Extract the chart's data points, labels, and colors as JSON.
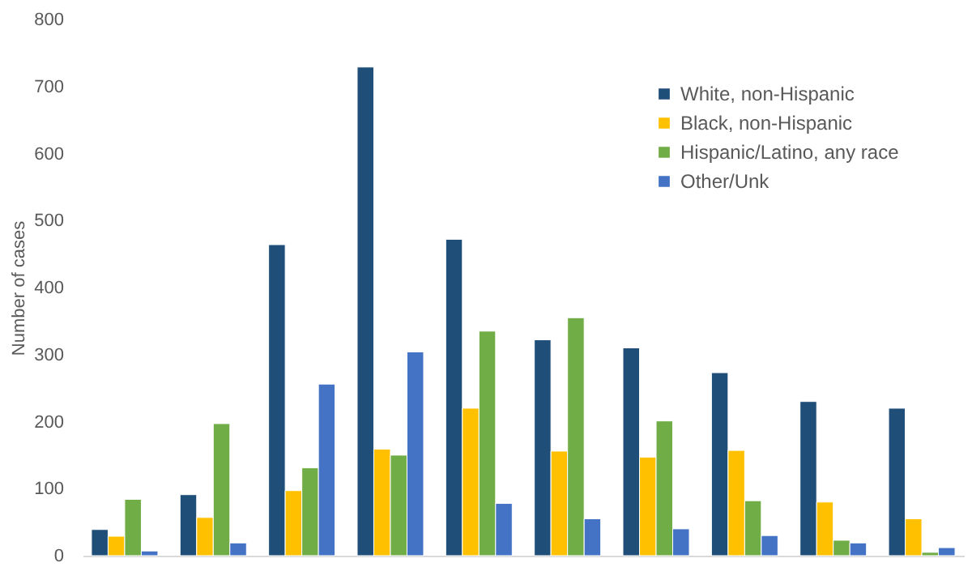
{
  "chart_data": {
    "type": "bar",
    "ylabel": "Number of cases",
    "categories": [
      null,
      null,
      null,
      null,
      null,
      null,
      null,
      null,
      null,
      null
    ],
    "series": [
      {
        "name": "White, non-Hispanic",
        "color": "#1f4e79",
        "values": [
          39,
          91,
          464,
          729,
          472,
          322,
          310,
          273,
          230,
          220
        ]
      },
      {
        "name": "Black, non-Hispanic",
        "color": "#ffc000",
        "values": [
          29,
          57,
          97,
          159,
          220,
          156,
          147,
          157,
          80,
          55
        ]
      },
      {
        "name": "Hispanic/Latino, any race",
        "color": "#70ad47",
        "values": [
          84,
          197,
          131,
          150,
          335,
          355,
          201,
          82,
          23,
          5
        ]
      },
      {
        "name": "Other/Unk",
        "color": "#4472c4",
        "values": [
          7,
          19,
          256,
          304,
          78,
          55,
          40,
          30,
          19,
          12
        ]
      }
    ],
    "ylim": [
      0,
      800
    ],
    "yticks": [
      0,
      100,
      200,
      300,
      400,
      500,
      600,
      700,
      800
    ],
    "grid": false,
    "legend": "top right",
    "tick_labels": "y"
  }
}
